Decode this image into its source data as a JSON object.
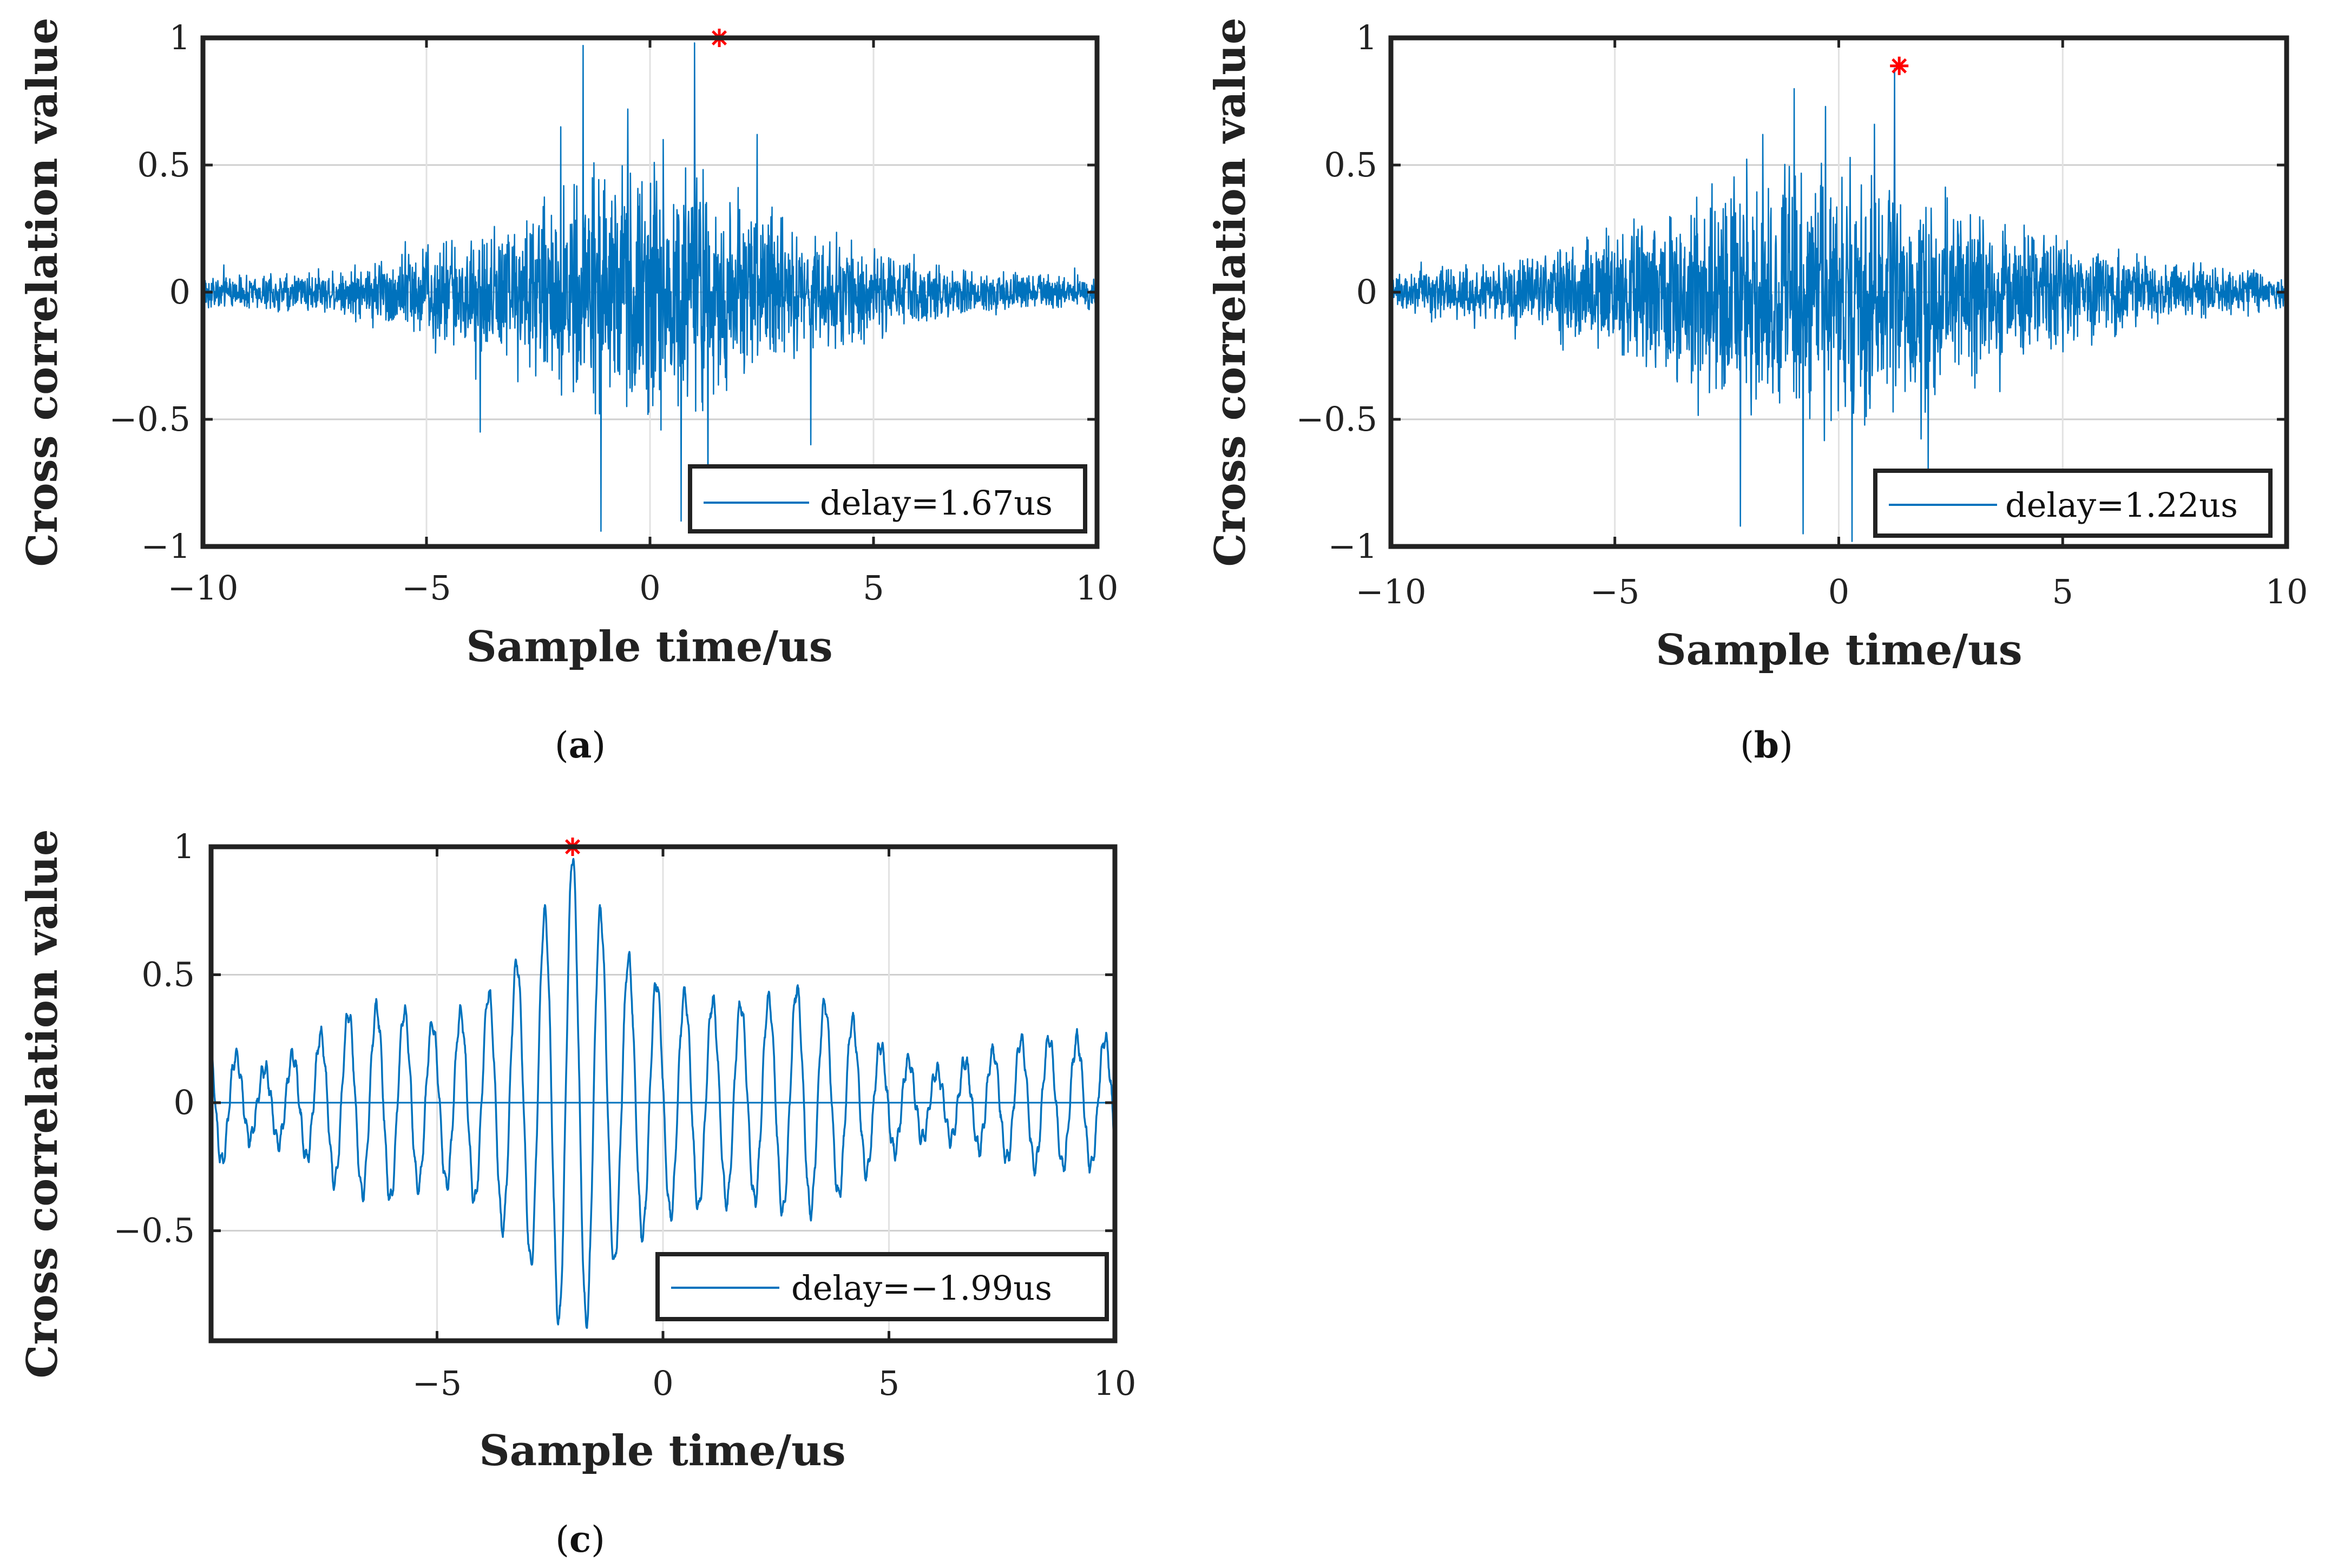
{
  "chart_data": [
    {
      "type": "line",
      "panel": "a",
      "caption": "a",
      "xlabel": "Sample time/us",
      "ylabel": "Cross correlation value",
      "xlim": [
        -10,
        10
      ],
      "ylim": [
        -1,
        1
      ],
      "xticks": [
        "−10",
        "−5",
        "0",
        "5",
        "10"
      ],
      "xtick_values": [
        -10,
        -5,
        0,
        5,
        10
      ],
      "yticks": [
        "1",
        "0.5",
        "0",
        "−0.5",
        "−1"
      ],
      "ytick_values": [
        1,
        0.5,
        0,
        -0.5,
        -1
      ],
      "grid": true,
      "series": [
        {
          "name": "delay=1.67us",
          "color": "#0072bd",
          "signal": "noise",
          "envelope": [
            {
              "x": -10,
              "y": 0.07
            },
            {
              "x": -7,
              "y": 0.1
            },
            {
              "x": -5,
              "y": 0.22
            },
            {
              "x": -3,
              "y": 0.35
            },
            {
              "x": -1,
              "y": 0.55
            },
            {
              "x": 0,
              "y": 0.6
            },
            {
              "x": 1,
              "y": 0.55
            },
            {
              "x": 2,
              "y": 0.45
            },
            {
              "x": 3,
              "y": 0.3
            },
            {
              "x": 5,
              "y": 0.2
            },
            {
              "x": 7,
              "y": 0.1
            },
            {
              "x": 10,
              "y": 0.07
            }
          ],
          "spikes": [
            {
              "x": -1.5,
              "y": 0.97
            },
            {
              "x": -1.1,
              "y": -0.94
            },
            {
              "x": -0.5,
              "y": 0.72
            },
            {
              "x": 0.3,
              "y": 0.6
            },
            {
              "x": 1.0,
              "y": 0.98
            },
            {
              "x": 0.7,
              "y": -0.9
            },
            {
              "x": 1.3,
              "y": -0.88
            },
            {
              "x": -3.8,
              "y": -0.55
            },
            {
              "x": 3.6,
              "y": -0.6
            },
            {
              "x": -2.0,
              "y": 0.65
            },
            {
              "x": 2.4,
              "y": 0.62
            }
          ]
        }
      ],
      "peak": {
        "x": 1.55,
        "y": 1.0
      }
    },
    {
      "type": "line",
      "panel": "b",
      "caption": "b",
      "xlabel": "Sample time/us",
      "ylabel": "Cross correlation value",
      "xlim": [
        -10,
        10
      ],
      "ylim": [
        -1,
        1
      ],
      "xticks": [
        "−10",
        "−5",
        "0",
        "5",
        "10"
      ],
      "xtick_values": [
        -10,
        -5,
        0,
        5,
        10
      ],
      "yticks": [
        "1",
        "0.5",
        "0",
        "−0.5",
        "−1"
      ],
      "ytick_values": [
        1,
        0.5,
        0,
        -0.5,
        -1
      ],
      "grid": true,
      "series": [
        {
          "name": "delay=1.22us",
          "color": "#0072bd",
          "signal": "noise",
          "envelope": [
            {
              "x": -10,
              "y": 0.08
            },
            {
              "x": -7,
              "y": 0.15
            },
            {
              "x": -5,
              "y": 0.28
            },
            {
              "x": -3,
              "y": 0.45
            },
            {
              "x": -1,
              "y": 0.6
            },
            {
              "x": 0,
              "y": 0.62
            },
            {
              "x": 1,
              "y": 0.55
            },
            {
              "x": 2,
              "y": 0.45
            },
            {
              "x": 3,
              "y": 0.35
            },
            {
              "x": 5,
              "y": 0.25
            },
            {
              "x": 7,
              "y": 0.15
            },
            {
              "x": 10,
              "y": 0.08
            }
          ],
          "spikes": [
            {
              "x": -1.0,
              "y": 0.8
            },
            {
              "x": -2.2,
              "y": -0.92
            },
            {
              "x": -0.8,
              "y": -0.95
            },
            {
              "x": 0.3,
              "y": -0.98
            },
            {
              "x": 1.25,
              "y": 0.88
            },
            {
              "x": -0.3,
              "y": 0.73
            },
            {
              "x": -1.7,
              "y": 0.62
            },
            {
              "x": 2.0,
              "y": -0.72
            },
            {
              "x": 0.8,
              "y": 0.66
            }
          ]
        }
      ],
      "peak": {
        "x": 1.35,
        "y": 0.89
      }
    },
    {
      "type": "line",
      "panel": "c",
      "caption": "c",
      "xlabel": "Sample time/us",
      "ylabel": "Cross correlation value",
      "xlim": [
        -10,
        10
      ],
      "ylim": [
        -0.93,
        1.0
      ],
      "xticks": [
        "−5",
        "0",
        "5",
        "10"
      ],
      "xtick_values": [
        -5,
        0,
        5,
        10
      ],
      "yticks": [
        "1",
        "0.5",
        "0",
        "−0.5"
      ],
      "ytick_values": [
        1,
        0.5,
        0,
        -0.5
      ],
      "grid": true,
      "series": [
        {
          "name": "delay=−1.99us",
          "color": "#0072bd",
          "signal": "oscillation",
          "period": 0.62,
          "envelope": [
            {
              "x": -10,
              "y": 0.27
            },
            {
              "x": -9,
              "y": 0.12
            },
            {
              "x": -8,
              "y": 0.2
            },
            {
              "x": -7,
              "y": 0.35
            },
            {
              "x": -6,
              "y": 0.38
            },
            {
              "x": -5,
              "y": 0.3
            },
            {
              "x": -4,
              "y": 0.4
            },
            {
              "x": -3,
              "y": 0.6
            },
            {
              "x": -2,
              "y": 0.97
            },
            {
              "x": -1,
              "y": 0.6
            },
            {
              "x": 0,
              "y": 0.45
            },
            {
              "x": 1,
              "y": 0.4
            },
            {
              "x": 2,
              "y": 0.38
            },
            {
              "x": 3,
              "y": 0.45
            },
            {
              "x": 4,
              "y": 0.35
            },
            {
              "x": 5,
              "y": 0.2
            },
            {
              "x": 6,
              "y": 0.12
            },
            {
              "x": 7,
              "y": 0.18
            },
            {
              "x": 8,
              "y": 0.25
            },
            {
              "x": 10,
              "y": 0.25
            }
          ]
        }
      ],
      "peak": {
        "x": -2.0,
        "y": 1.0
      }
    }
  ]
}
